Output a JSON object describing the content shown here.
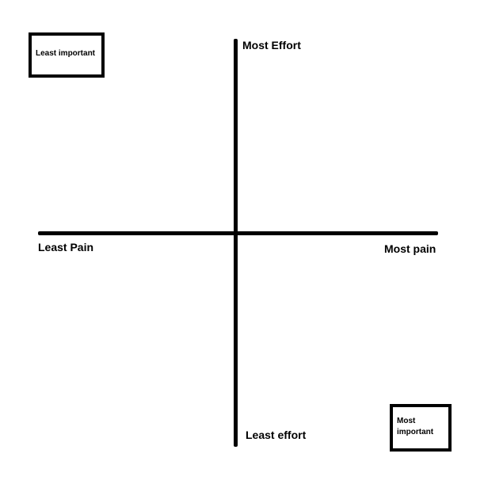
{
  "axes": {
    "vertical": {
      "top_label": "Most Effort",
      "bottom_label": "Least effort"
    },
    "horizontal": {
      "left_label": "Least Pain",
      "right_label": "Most pain"
    }
  },
  "corner_boxes": {
    "top_left": {
      "text": "Least important"
    },
    "bottom_right": {
      "text": "Most important"
    }
  }
}
